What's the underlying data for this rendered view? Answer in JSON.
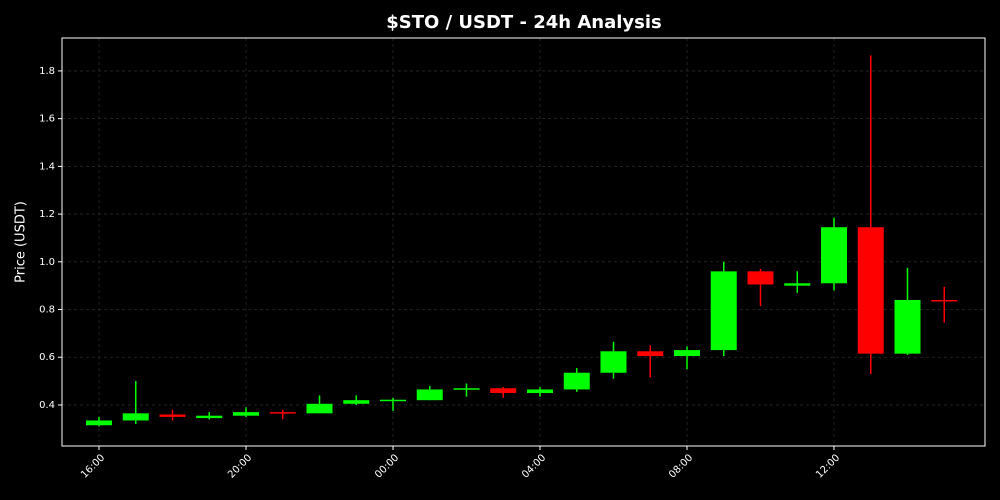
{
  "chart_data": {
    "type": "candlestick",
    "title": "$STO / USDT - 24h Analysis",
    "y_label": "Price (USDT)",
    "categories": [
      "16:00",
      null,
      null,
      null,
      "20:00",
      null,
      null,
      null,
      "00:00",
      null,
      null,
      null,
      "04:00",
      null,
      null,
      null,
      "08:00",
      null,
      null,
      null,
      "12:00",
      null,
      null,
      null
    ],
    "open": [
      0.315,
      0.335,
      0.36,
      0.345,
      0.355,
      0.37,
      0.365,
      0.405,
      0.418,
      0.42,
      0.465,
      0.47,
      0.45,
      0.465,
      0.535,
      0.625,
      0.605,
      0.63,
      0.96,
      0.9,
      0.91,
      1.145,
      0.615,
      0.84
    ],
    "high": [
      0.35,
      0.5,
      0.38,
      0.37,
      0.39,
      0.38,
      0.44,
      0.44,
      0.43,
      0.48,
      0.49,
      0.475,
      0.475,
      0.555,
      0.665,
      0.65,
      0.645,
      1.0,
      0.97,
      0.96,
      1.185,
      1.865,
      0.975,
      0.895
    ],
    "low": [
      0.31,
      0.32,
      0.335,
      0.34,
      0.35,
      0.34,
      0.365,
      0.4,
      0.375,
      0.42,
      0.435,
      0.43,
      0.435,
      0.455,
      0.51,
      0.515,
      0.55,
      0.605,
      0.815,
      0.87,
      0.88,
      0.53,
      0.61,
      0.745
    ],
    "close": [
      0.335,
      0.365,
      0.35,
      0.355,
      0.37,
      0.365,
      0.405,
      0.42,
      0.422,
      0.465,
      0.47,
      0.45,
      0.465,
      0.535,
      0.625,
      0.605,
      0.63,
      0.96,
      0.905,
      0.91,
      1.145,
      0.615,
      0.84,
      0.835
    ],
    "up_color": "#00ff00",
    "down_color": "#ff0000",
    "ylim": [
      0.228,
      1.938
    ],
    "yticks": [
      0.4,
      0.6,
      0.8,
      {
        "value": 1,
        "label": "1.0"
      },
      1.2,
      1.4,
      1.6,
      1.8
    ],
    "grid": true
  }
}
